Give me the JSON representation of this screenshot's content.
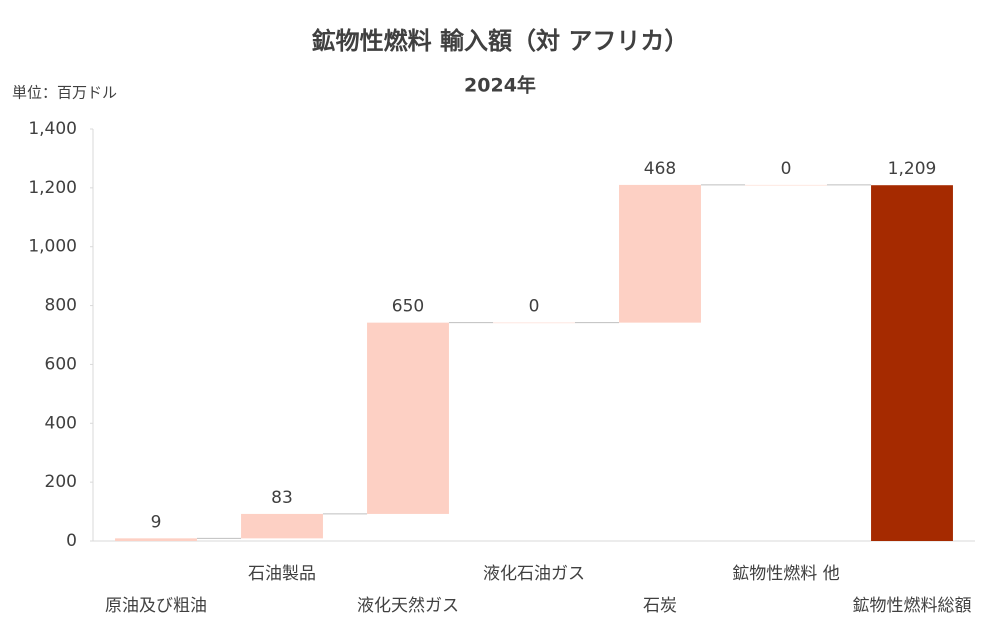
{
  "chart_data": {
    "type": "waterfall",
    "title": "鉱物性燃料 輸入額（対 アフリカ）",
    "subtitle": "2024年",
    "unit_label": "単位：百万ドル",
    "categories": [
      "原油及び粗油",
      "石油製品",
      "液化天然ガス",
      "液化石油ガス",
      "石炭",
      "鉱物性燃料 他",
      "鉱物性燃料総額"
    ],
    "values": [
      9,
      83,
      650,
      0,
      468,
      0,
      1209
    ],
    "value_labels": [
      "9",
      "83",
      "650",
      "0",
      "468",
      "0",
      "1,209"
    ],
    "is_total": [
      false,
      false,
      false,
      false,
      false,
      false,
      true
    ],
    "color": "#fdd0c4",
    "total_color": "#a52a00",
    "ylim": [
      0,
      1400
    ],
    "yticks": [
      0,
      200,
      400,
      600,
      800,
      {
        "value": 1000,
        "label": "1,000"
      },
      {
        "value": 1200,
        "label": "1,200"
      },
      {
        "value": 1400,
        "label": "1,400"
      }
    ],
    "grid": false
  }
}
